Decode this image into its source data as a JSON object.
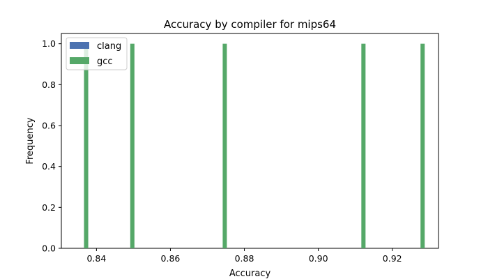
{
  "chart_data": {
    "type": "histogram",
    "title": "Accuracy by compiler for mips64",
    "xlabel": "Accuracy",
    "ylabel": "Frequency",
    "xlim": [
      0.8305,
      0.9325
    ],
    "ylim": [
      0,
      1.05
    ],
    "x_ticks": [
      0.84,
      0.86,
      0.88,
      0.9,
      0.92
    ],
    "x_tick_labels": [
      "0.84",
      "0.86",
      "0.88",
      "0.90",
      "0.92"
    ],
    "y_ticks": [
      0.0,
      0.2,
      0.4,
      0.6,
      0.8,
      1.0
    ],
    "y_tick_labels": [
      "0.0",
      "0.2",
      "0.4",
      "0.6",
      "0.8",
      "1.0"
    ],
    "legend_position": "upper-left",
    "series": [
      {
        "name": "clang",
        "color": "#4c72b0",
        "bars": [
          {
            "x": 0.8372,
            "value": 1
          }
        ]
      },
      {
        "name": "gcc",
        "color": "#55a868",
        "bars": [
          {
            "x": 0.8372,
            "value": 1
          },
          {
            "x": 0.8497,
            "value": 1
          },
          {
            "x": 0.8747,
            "value": 1
          },
          {
            "x": 0.9122,
            "value": 1
          },
          {
            "x": 0.9282,
            "value": 1
          }
        ]
      }
    ]
  }
}
